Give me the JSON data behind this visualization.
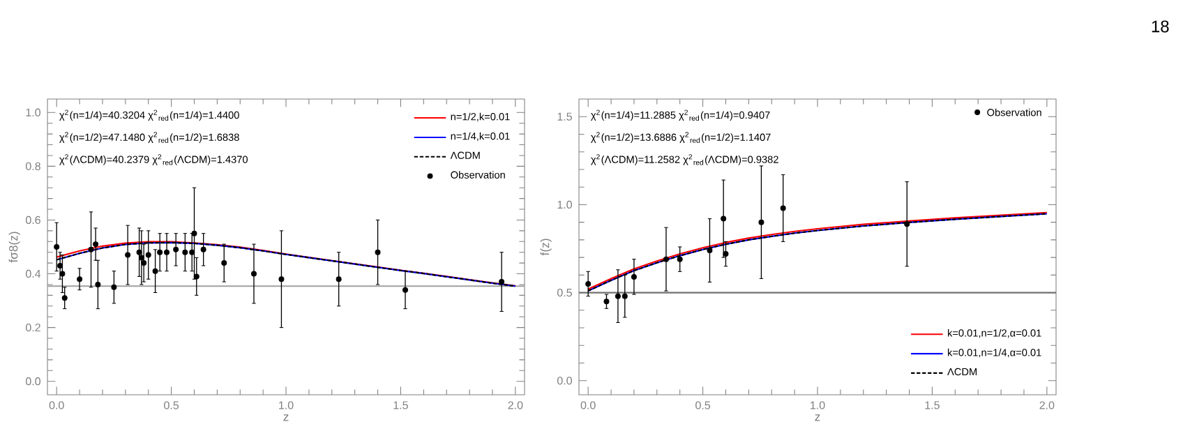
{
  "chart_data": [
    {
      "type": "line",
      "xlabel": "z",
      "ylabel": "fσ8(z)",
      "xlim": [
        -0.04,
        2.04
      ],
      "ylim": [
        -0.05,
        1.05
      ],
      "xticks": [
        {
          "value": 0,
          "label": "0.0"
        },
        {
          "value": 0.5,
          "label": "0.5"
        },
        {
          "value": 1,
          "label": "1.0"
        },
        {
          "value": 1.5,
          "label": "1.5"
        },
        {
          "value": 2,
          "label": "2.0"
        }
      ],
      "yticks": [
        {
          "value": 0,
          "label": "0.0"
        },
        {
          "value": 0.2,
          "label": "0.2"
        },
        {
          "value": 0.4,
          "label": "0.4"
        },
        {
          "value": 0.6,
          "label": "0.6"
        },
        {
          "value": 0.8,
          "label": "0.8"
        },
        {
          "value": 1,
          "label": "1.0"
        }
      ],
      "legend": "top right",
      "annotations": [
        "χ$^{2}$(n=1/4)=40.3204   χ$^{2}$$_{red}$(n=1/4)=1.4400",
        "χ$^{2}$(n=1/2)=47.1480   χ$^{2}$$_{red}$(n=1/2)=1.6838",
        "χ$^{2}$(ΛCDM)=40.2379 χ$^{2}$$_{red}$(ΛCDM)=1.4370"
      ],
      "ref_lines": [
        {
          "axis": "y",
          "value": 0.354,
          "color": "#a0a0a0"
        }
      ],
      "x": [
        0,
        0.1,
        0.2,
        0.3,
        0.4,
        0.5,
        0.6,
        0.7,
        0.8,
        0.9,
        1.0,
        1.1,
        1.2,
        1.3,
        1.4,
        1.5,
        1.6,
        1.7,
        1.8,
        1.9,
        2.0
      ],
      "series": [
        {
          "name": "n=1/2,k=0.01",
          "color": "#ff0000",
          "values": [
            0.462,
            0.485,
            0.503,
            0.514,
            0.519,
            0.519,
            0.515,
            0.508,
            0.499,
            0.487,
            0.473,
            0.461,
            0.449,
            0.437,
            0.425,
            0.413,
            0.402,
            0.39,
            0.378,
            0.366,
            0.355
          ]
        },
        {
          "name": "n=1/4,k=0.01",
          "color": "#0000ff",
          "values": [
            0.452,
            0.476,
            0.496,
            0.509,
            0.515,
            0.516,
            0.513,
            0.506,
            0.497,
            0.485,
            0.472,
            0.46,
            0.448,
            0.436,
            0.424,
            0.412,
            0.401,
            0.389,
            0.377,
            0.365,
            0.354
          ]
        },
        {
          "name": "ΛCDM",
          "color": "#000000",
          "line_style": "dashed",
          "values": [
            0.452,
            0.476,
            0.496,
            0.509,
            0.515,
            0.516,
            0.513,
            0.506,
            0.497,
            0.485,
            0.472,
            0.46,
            0.448,
            0.436,
            0.424,
            0.412,
            0.401,
            0.389,
            0.377,
            0.365,
            0.354
          ]
        },
        {
          "name": "Observation",
          "type": "scatter",
          "marker": "circle",
          "color": "#000000",
          "x": [
            0.0,
            0.015,
            0.025,
            0.035,
            0.1,
            0.15,
            0.17,
            0.18,
            0.25,
            0.31,
            0.36,
            0.37,
            0.38,
            0.4,
            0.43,
            0.45,
            0.48,
            0.52,
            0.56,
            0.59,
            0.6,
            0.61,
            0.64,
            0.73,
            0.86,
            0.98,
            1.23,
            1.4,
            1.52,
            1.94
          ],
          "values": [
            0.5,
            0.43,
            0.4,
            0.31,
            0.38,
            0.49,
            0.51,
            0.36,
            0.35,
            0.47,
            0.48,
            0.46,
            0.44,
            0.47,
            0.41,
            0.48,
            0.48,
            0.49,
            0.48,
            0.48,
            0.55,
            0.39,
            0.49,
            0.44,
            0.4,
            0.38,
            0.38,
            0.48,
            0.34,
            0.37
          ],
          "errors": [
            0.09,
            0.05,
            0.07,
            0.04,
            0.04,
            0.14,
            0.06,
            0.09,
            0.06,
            0.11,
            0.09,
            0.1,
            0.07,
            0.09,
            0.08,
            0.07,
            0.07,
            0.06,
            0.07,
            0.07,
            0.17,
            0.07,
            0.06,
            0.07,
            0.11,
            0.18,
            0.1,
            0.12,
            0.07,
            0.11
          ]
        }
      ]
    },
    {
      "type": "line",
      "xlabel": "z",
      "ylabel": "f(z)",
      "xlim": [
        -0.04,
        2.04
      ],
      "ylim": [
        -0.08,
        1.6
      ],
      "xticks": [
        {
          "value": 0,
          "label": "0.0"
        },
        {
          "value": 0.5,
          "label": "0.5"
        },
        {
          "value": 1,
          "label": "1.0"
        },
        {
          "value": 1.5,
          "label": "1.5"
        },
        {
          "value": 2,
          "label": "2.0"
        }
      ],
      "yticks": [
        {
          "value": 0,
          "label": "0.0"
        },
        {
          "value": 0.5,
          "label": "0.5"
        },
        {
          "value": 1,
          "label": "1.0"
        },
        {
          "value": 1.5,
          "label": "1.5"
        }
      ],
      "legend": "right",
      "annotations": [
        "χ$^{2}$(n=1/4)=11.2885   χ$^{2}$$_{red}$(n=1/4)=0.9407",
        "χ$^{2}$(n=1/2)=13.6886   χ$^{2}$$_{red}$(n=1/2)=1.1407",
        "χ$^{2}$(ΛCDM)=11.2582 χ$^{2}$$_{red}$(ΛCDM)=0.9382"
      ],
      "ref_lines": [
        {
          "axis": "y",
          "value": 0.5,
          "color": "#707070"
        }
      ],
      "x": [
        0,
        0.1,
        0.2,
        0.3,
        0.4,
        0.5,
        0.6,
        0.7,
        0.8,
        0.9,
        1.0,
        1.2,
        1.4,
        1.6,
        1.8,
        2.0
      ],
      "series": [
        {
          "name": "k=0.01,n=1/2,α=0.01",
          "color": "#ff0000",
          "values": [
            0.52,
            0.58,
            0.635,
            0.68,
            0.72,
            0.755,
            0.785,
            0.81,
            0.83,
            0.848,
            0.863,
            0.888,
            0.907,
            0.925,
            0.94,
            0.955
          ]
        },
        {
          "name": "k=0.01,n=1/4,α=0.01",
          "color": "#0000ff",
          "values": [
            0.51,
            0.57,
            0.625,
            0.67,
            0.71,
            0.745,
            0.775,
            0.8,
            0.82,
            0.838,
            0.853,
            0.879,
            0.899,
            0.917,
            0.933,
            0.948
          ]
        },
        {
          "name": "ΛCDM",
          "color": "#000000",
          "line_style": "dashed",
          "values": [
            0.51,
            0.57,
            0.625,
            0.67,
            0.71,
            0.745,
            0.775,
            0.8,
            0.82,
            0.838,
            0.853,
            0.879,
            0.899,
            0.917,
            0.933,
            0.948
          ]
        },
        {
          "name": "Observation",
          "type": "scatter",
          "marker": "circle",
          "color": "#000000",
          "x": [
            0.0,
            0.08,
            0.13,
            0.16,
            0.2,
            0.34,
            0.4,
            0.53,
            0.59,
            0.6,
            0.755,
            0.85,
            1.39
          ],
          "values": [
            0.55,
            0.45,
            0.48,
            0.48,
            0.59,
            0.69,
            0.69,
            0.74,
            0.92,
            0.72,
            0.9,
            0.98,
            0.89
          ],
          "errors": [
            0.07,
            0.04,
            0.15,
            0.12,
            0.1,
            0.18,
            0.07,
            0.18,
            0.22,
            0.07,
            0.32,
            0.19,
            0.24
          ]
        }
      ]
    },
    {
      "type": "other",
      "annotations": [
        "18"
      ]
    }
  ]
}
